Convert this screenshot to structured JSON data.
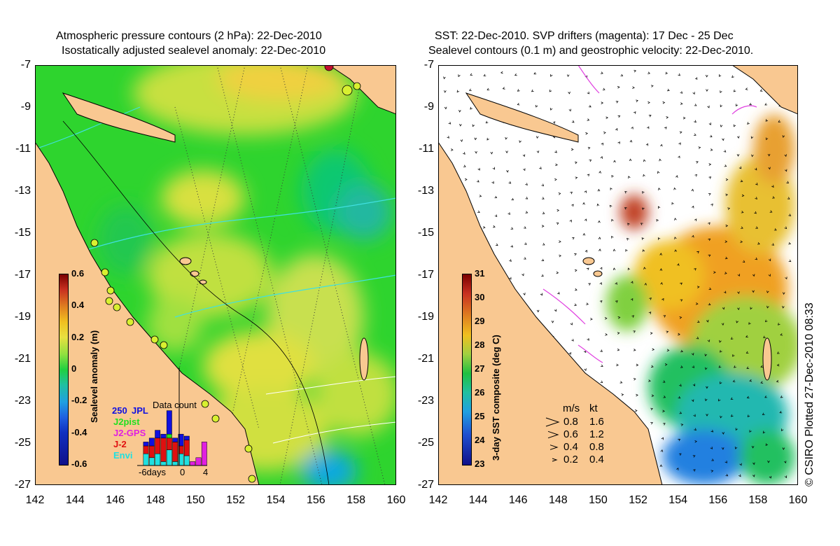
{
  "left_panel": {
    "title_line1": "Atmospheric pressure contours (2 hPa): 22-Dec-2010",
    "title_line2": "Isostatically adjusted sealevel anomaly: 22-Dec-2010",
    "colorbar": {
      "title": "Sealevel anomaly (m)",
      "ticks": [
        "0.6",
        "0.4",
        "0.2",
        "0",
        "-0.2",
        "-0.4",
        "-0.6"
      ],
      "range": [
        -0.6,
        0.6
      ]
    },
    "inset": {
      "title": "Data count",
      "top_value": "250",
      "missions": [
        {
          "name": "JPL",
          "color": "#1010e0"
        },
        {
          "name": "J2pist",
          "color": "#20e020"
        },
        {
          "name": "J2-GPS",
          "color": "#e020e0"
        },
        {
          "name": "J-2",
          "color": "#e01010"
        },
        {
          "name": "Envi",
          "color": "#20e0e0"
        }
      ],
      "x_labels": [
        "-6days",
        "0",
        "4"
      ],
      "counts": {
        "Envi": [
          0,
          30,
          20,
          30,
          10,
          40,
          10,
          30,
          25,
          0,
          0,
          0
        ],
        "J-2": [
          0,
          20,
          30,
          40,
          60,
          30,
          50,
          20,
          40,
          0,
          0,
          0
        ],
        "J2-GPS": [
          0,
          0,
          0,
          0,
          0,
          0,
          0,
          0,
          0,
          10,
          20,
          60
        ],
        "J2pist": [
          0,
          0,
          0,
          0,
          0,
          10,
          0,
          0,
          0,
          0,
          0,
          0
        ],
        "JPL": [
          0,
          10,
          20,
          20,
          10,
          60,
          10,
          30,
          10,
          0,
          0,
          0
        ]
      }
    }
  },
  "right_panel": {
    "title_line1": "SST: 22-Dec-2010. SVP drifters (magenta): 17 Dec - 25 Dec",
    "title_line2": "Sealevel contours (0.1 m) and geostrophic velocity: 22-Dec-2010.",
    "colorbar": {
      "title": "3-day SST composite (deg C)",
      "ticks": [
        "31",
        "30",
        "29",
        "28",
        "27",
        "26",
        "25",
        "24",
        "23"
      ],
      "range": [
        23,
        31
      ]
    },
    "velocity_legend": {
      "header_ms": "m/s",
      "header_kt": "kt",
      "rows": [
        {
          "ms": "0.8",
          "kt": "1.6"
        },
        {
          "ms": "0.6",
          "kt": "1.2"
        },
        {
          "ms": "0.4",
          "kt": "0.8"
        },
        {
          "ms": "0.2",
          "kt": "0.4"
        }
      ]
    },
    "credit": "© CSIRO Plotted 27-Dec-2010 08:33"
  },
  "axes": {
    "lat_labels": [
      "-7",
      "-9",
      "-11",
      "-13",
      "-15",
      "-17",
      "-19",
      "-21",
      "-23",
      "-25",
      "-27"
    ],
    "lon_labels": [
      "142",
      "144",
      "146",
      "148",
      "150",
      "152",
      "154",
      "156",
      "158",
      "160"
    ]
  },
  "colors": {
    "land": "#f9c891",
    "coast": "#000000",
    "altimeter_track": "#3a3a3a",
    "pressure_contour": "#40e0e0",
    "drifter": "#e040e0",
    "station_marker": "#d8f030"
  }
}
